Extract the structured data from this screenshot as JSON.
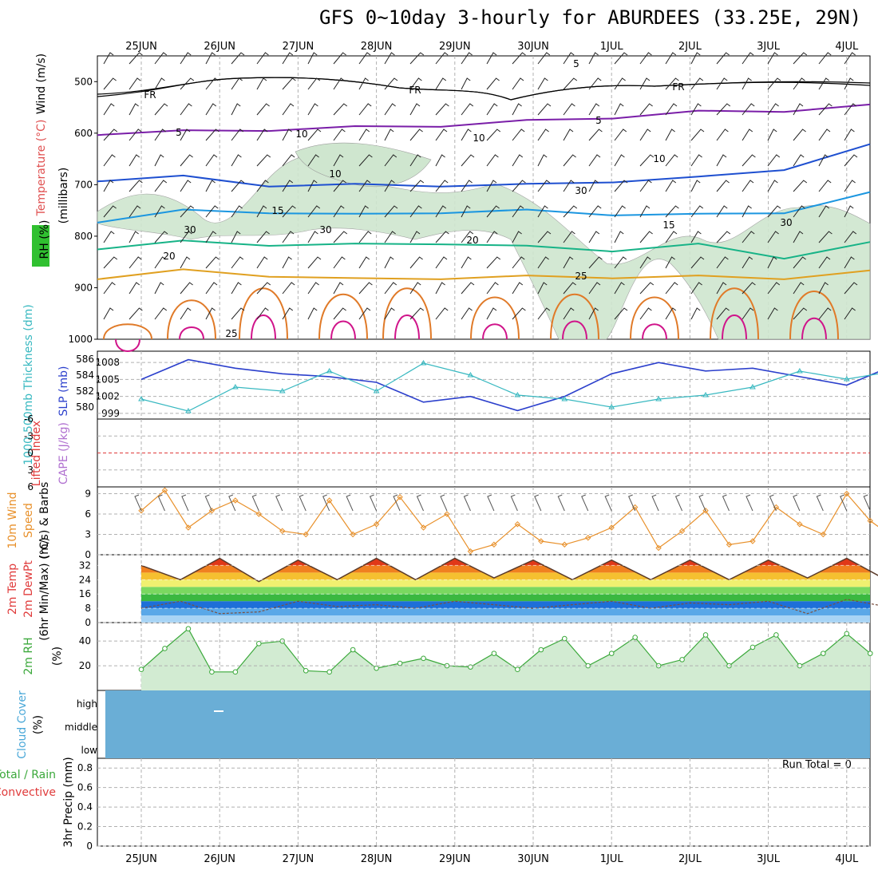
{
  "title": "GFS 0~10day 3-hourly for ABURDEES (33.25E, 29N)",
  "dates": [
    "25JUN",
    "26JUN",
    "27JUN",
    "28JUN",
    "29JUN",
    "30JUN",
    "1JUL",
    "2JUL",
    "3JUL",
    "4JUL"
  ],
  "run_total": "Run Total = 0",
  "colors": {
    "grid": "#b0b0b0",
    "rh_fill": "#cfe6cf",
    "rh_line": "#9a9a9a",
    "slp": "#2b3fcc",
    "thick": "#37b8c0",
    "wind10": "#e8902a",
    "barb": "#555555",
    "rh2m": "#3aa83a",
    "cloud": "#6aaed6",
    "li": "#e03b3b"
  },
  "panels": {
    "upper": {
      "label_wind": "Wind (m/s)",
      "label_temp": "Temperature (°C)",
      "label_rh": "RH (%)",
      "label_mb": "(millibars)",
      "yticks": [
        "500",
        "600",
        "700",
        "800",
        "900",
        "1000"
      ]
    },
    "slp": {
      "label_thick": "1000-500mb Thickness (dm)",
      "label_slp": "SLP (mb)",
      "yticks_left": [
        "586",
        "584",
        "582",
        "580"
      ],
      "yticks_right": [
        "1008",
        "1005",
        "1002",
        "999"
      ]
    },
    "cape": {
      "label_li": "Lifted Index",
      "label_cape": "CAPE (J/kg)",
      "yticks": [
        "-6",
        "-3",
        "0",
        "3",
        "6"
      ]
    },
    "wind10": {
      "label_a": "10m Wind",
      "label_b": "Speed",
      "label_c": "(m/s) & Barbs",
      "yticks": [
        "9",
        "6",
        "3",
        "0"
      ]
    },
    "temp2m": {
      "label_a": "2m Temp",
      "label_b": "2m DewPt",
      "label_c": "(6hr Min/Max) (°C)",
      "yticks": [
        "32",
        "24",
        "16",
        "8",
        "0"
      ]
    },
    "rh2m": {
      "label_a": "2m RH",
      "label_b": "(%)",
      "yticks": [
        "40",
        "20"
      ]
    },
    "cloud": {
      "label_a": "Cloud Cover",
      "label_b": "(%)",
      "yticks": [
        "high",
        "middle",
        "low"
      ]
    },
    "precip": {
      "label_a": "Total / Rain",
      "label_b": "Convective",
      "label_c": "3hr Precip (mm)",
      "yticks": [
        "0.8",
        "0.6",
        "0.4",
        "0.2",
        "0"
      ]
    }
  },
  "chart_data": [
    {
      "type": "line",
      "name": "upper-air cross section",
      "xlabel": "",
      "ylabel": "(millibars)",
      "ylim": [
        1000,
        450
      ],
      "contour_labels": [
        "FR",
        "FR",
        "FR",
        "5",
        "5",
        "5",
        "10",
        "10",
        "15",
        "15",
        "20",
        "20",
        "25",
        "25",
        "30",
        "30",
        "30",
        "30",
        "10",
        "10"
      ],
      "isotherms": [
        {
          "value": 5,
          "pressure": [
            600,
            598,
            592,
            590,
            584,
            578,
            568,
            560,
            555,
            548
          ]
        },
        {
          "value": 10,
          "pressure": [
            690,
            686,
            700,
            702,
            700,
            702,
            692,
            688,
            668,
            625
          ]
        },
        {
          "value": 15,
          "pressure": [
            770,
            752,
            752,
            760,
            752,
            752,
            756,
            760,
            752,
            718
          ]
        },
        {
          "value": 20,
          "pressure": [
            822,
            812,
            815,
            818,
            812,
            822,
            826,
            818,
            840,
            815
          ]
        },
        {
          "value": 25,
          "pressure": [
            880,
            868,
            875,
            885,
            880,
            880,
            878,
            880,
            880,
            870
          ]
        }
      ]
    },
    {
      "type": "line",
      "series": [
        {
          "name": "SLP (mb)",
          "values": [
            1005.0,
            1008.5,
            1007.0,
            1006.0,
            1005.5,
            1004.5,
            1001.0,
            1002.0,
            999.5,
            1002.0,
            1006.0,
            1008.0,
            1006.5,
            1007.0,
            1005.5,
            1004.0,
            1007.5
          ]
        },
        {
          "name": "1000-500mb Thickness (dm)",
          "values": [
            581.0,
            579.5,
            582.5,
            582.0,
            584.5,
            582.0,
            585.5,
            584.0,
            581.5,
            581.0,
            580.0,
            581.0,
            581.5,
            582.5,
            584.5,
            583.5,
            584.5
          ]
        }
      ],
      "x": [
        0,
        0.6,
        1.2,
        1.8,
        2.4,
        3.0,
        3.6,
        4.2,
        4.8,
        5.4,
        6.0,
        6.6,
        7.2,
        7.8,
        8.4,
        9.0,
        9.6
      ]
    },
    {
      "type": "line",
      "series": [
        {
          "name": "Lifted Index",
          "values": [
            0,
            0
          ]
        }
      ],
      "ylim": [
        6,
        -6
      ]
    },
    {
      "type": "line",
      "series": [
        {
          "name": "10m Wind Speed (m/s)",
          "values": [
            6.5,
            9.5,
            4.0,
            6.5,
            8.0,
            6.0,
            3.5,
            3.0,
            8.0,
            3.0,
            4.5,
            8.5,
            4.0,
            6.0,
            0.5,
            1.5,
            4.5,
            2.0,
            1.5,
            2.5,
            4.0,
            7.0,
            1.0,
            3.5,
            6.5,
            1.5,
            2.0,
            7.0,
            4.5,
            3.0,
            9.0,
            5.0,
            2.5
          ]
        }
      ],
      "x": [
        0,
        0.3,
        0.6,
        0.9,
        1.2,
        1.5,
        1.8,
        2.1,
        2.4,
        2.7,
        3.0,
        3.3,
        3.6,
        3.9,
        4.2,
        4.5,
        4.8,
        5.1,
        5.4,
        5.7,
        6.0,
        6.3,
        6.6,
        6.9,
        7.2,
        7.5,
        7.8,
        8.1,
        8.4,
        8.7,
        9.0,
        9.3,
        9.6
      ],
      "ylim": [
        0,
        10
      ]
    },
    {
      "type": "area",
      "series": [
        {
          "name": "2m Temp (°C)",
          "values": [
            32,
            24,
            36,
            23,
            35,
            24,
            36,
            24,
            36,
            25,
            35,
            24,
            35,
            24,
            35,
            24,
            35,
            25,
            36,
            24,
            35,
            28
          ]
        },
        {
          "name": "2m DewPt (°C)",
          "values": [
            8,
            12,
            5,
            6,
            12,
            9,
            10,
            8,
            12,
            10,
            8,
            10,
            12,
            8,
            11,
            10,
            12,
            5,
            13,
            9,
            12,
            10
          ]
        }
      ],
      "x": [
        0,
        0.5,
        1.0,
        1.5,
        2.0,
        2.5,
        3.0,
        3.5,
        4.0,
        4.5,
        5.0,
        5.5,
        6.0,
        6.5,
        7.0,
        7.5,
        8.0,
        8.5,
        9.0,
        9.5,
        10.0,
        10.5
      ],
      "ylim": [
        0,
        38
      ]
    },
    {
      "type": "area",
      "series": [
        {
          "name": "2m RH (%)",
          "values": [
            17,
            34,
            50,
            15,
            15,
            38,
            40,
            16,
            15,
            33,
            18,
            22,
            26,
            20,
            19,
            30,
            17,
            33,
            42,
            20,
            30,
            43,
            20,
            25,
            45,
            20,
            35,
            45,
            20,
            30,
            46,
            30
          ]
        }
      ],
      "x": [
        0,
        0.3,
        0.6,
        0.9,
        1.2,
        1.5,
        1.8,
        2.1,
        2.4,
        2.7,
        3.0,
        3.3,
        3.6,
        3.9,
        4.2,
        4.5,
        4.8,
        5.1,
        5.4,
        5.7,
        6.0,
        6.3,
        6.6,
        6.9,
        7.2,
        7.5,
        7.8,
        8.1,
        8.4,
        8.7,
        9.0,
        9.3
      ],
      "ylim": [
        0,
        55
      ]
    },
    {
      "type": "heatmap",
      "series": [
        {
          "name": "Cloud Cover (%)",
          "values": [
            0,
            0,
            0
          ]
        }
      ],
      "categories": [
        "high",
        "middle",
        "low"
      ]
    },
    {
      "type": "bar",
      "series": [
        {
          "name": "3hr Precip (mm)",
          "values": [
            0,
            0,
            0,
            0,
            0,
            0,
            0,
            0,
            0,
            0
          ]
        }
      ],
      "ylim": [
        0,
        1
      ]
    }
  ]
}
